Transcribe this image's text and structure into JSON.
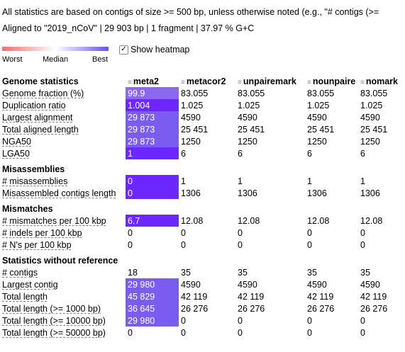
{
  "notes": {
    "top": "All statistics are based on contigs of size >= 500 bp, unless otherwise noted (e.g., \"# contigs (>=",
    "aligned": "Aligned to \"2019_nCoV\" | 29 903 bp | 1 fragment | 37.97 % G+C"
  },
  "legend": {
    "worst": "Worst",
    "median": "Median",
    "best": "Best",
    "colors": {
      "worst": "#ff6b6b",
      "median": "#ffffff",
      "best": "#6c4cff"
    }
  },
  "heatmap_toggle": {
    "label": "Show heatmap",
    "checked": true
  },
  "table": {
    "columns": [
      "Genome statistics",
      "meta2",
      "metacor2",
      "unpairemark",
      "nounpaire",
      "nomark"
    ],
    "sections": [
      {
        "title": "Genome statistics",
        "rows": [
          {
            "name": "Genome fraction (%)",
            "values": [
              "99.9",
              "83.055",
              "83.055",
              "83.055",
              "83.055"
            ]
          },
          {
            "name": "Duplication ratio",
            "values": [
              "1.004",
              "1.025",
              "1.025",
              "1.025",
              "1.025"
            ]
          },
          {
            "name": "Largest alignment",
            "values": [
              "29 873",
              "4590",
              "4590",
              "4590",
              "4590"
            ]
          },
          {
            "name": "Total aligned length",
            "values": [
              "29 873",
              "25 451",
              "25 451",
              "25 451",
              "25 451"
            ]
          },
          {
            "name": "NGA50",
            "values": [
              "29 873",
              "1250",
              "1250",
              "1250",
              "1250"
            ]
          },
          {
            "name": "LGA50",
            "values": [
              "1",
              "6",
              "6",
              "6",
              "6"
            ]
          }
        ]
      },
      {
        "title": "Misassemblies",
        "rows": [
          {
            "name": "# misassemblies",
            "values": [
              "0",
              "1",
              "1",
              "1",
              "1"
            ]
          },
          {
            "name": "Misassembled contigs length",
            "values": [
              "0",
              "1306",
              "1306",
              "1306",
              "1306"
            ]
          }
        ]
      },
      {
        "title": "Mismatches",
        "rows": [
          {
            "name": "# mismatches per 100 kbp",
            "values": [
              "6.7",
              "12.08",
              "12.08",
              "12.08",
              "12.08"
            ]
          },
          {
            "name": "# indels per 100 kbp",
            "values": [
              "0",
              "0",
              "0",
              "0",
              "0"
            ]
          },
          {
            "name": "# N's per 100 kbp",
            "values": [
              "0",
              "0",
              "0",
              "0",
              "0"
            ]
          }
        ]
      },
      {
        "title": "Statistics without reference",
        "rows": [
          {
            "name": "# contigs",
            "values": [
              "18",
              "35",
              "35",
              "35",
              "35"
            ]
          },
          {
            "name": "Largest contig",
            "values": [
              "29 980",
              "4590",
              "4590",
              "4590",
              "4590"
            ]
          },
          {
            "name": "Total length",
            "values": [
              "45 829",
              "42 119",
              "42 119",
              "42 119",
              "42 119"
            ]
          },
          {
            "name": "Total length (>= 1000 bp)",
            "values": [
              "36 645",
              "26 276",
              "26 276",
              "26 276",
              "26 276"
            ]
          },
          {
            "name": "Total length (>= 10000 bp)",
            "values": [
              "29 980",
              "0",
              "0",
              "0",
              "0"
            ]
          },
          {
            "name": "Total length (>= 50000 bp)",
            "values": [
              "0",
              "0",
              "0",
              "0",
              "0"
            ]
          }
        ]
      }
    ]
  }
}
